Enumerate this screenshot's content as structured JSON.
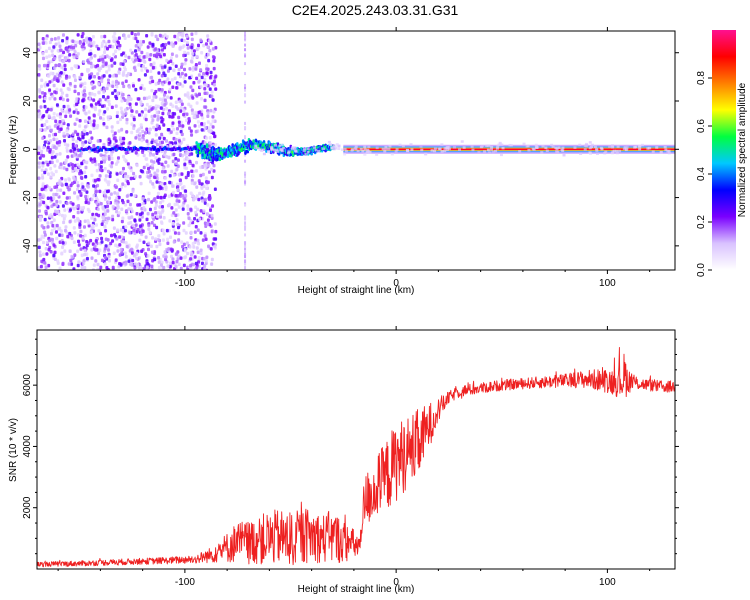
{
  "page": {
    "title": "C2E4.2025.243.03.31.G31"
  },
  "chart_data": [
    {
      "type": "heatmap",
      "name": "spectrogram",
      "xlabel": "Height of straight line (km)",
      "ylabel": "Frequency (Hz)",
      "xlim": [
        -170,
        132
      ],
      "ylim": [
        -50,
        49
      ],
      "xticks": [
        -100,
        0,
        100
      ],
      "yticks": [
        -40,
        -20,
        0,
        20,
        40
      ],
      "x_tick_labels": [
        "-100",
        "0",
        "100"
      ],
      "y_tick_labels": [
        "-40",
        "-20",
        "0",
        "20",
        "40"
      ],
      "features": {
        "noise_region_x": [
          -170,
          -90
        ],
        "vertical_artifact_x": -72,
        "carrier_frequency": 0,
        "strong_carrier_start_x": -25,
        "wobble_segment": [
          -95,
          -30
        ]
      },
      "colorbar": {
        "label": "Normalized spectral amplitude",
        "range": [
          0.0,
          1.0
        ],
        "ticks": [
          0.0,
          0.2,
          0.4,
          0.6,
          0.8
        ],
        "tick_labels": [
          "0.0",
          "0.2",
          "0.4",
          "0.6",
          "0.8"
        ],
        "colormap": [
          "#ffffff",
          "#d9c2ff",
          "#7a00ff",
          "#0000ff",
          "#00c8ff",
          "#00ff40",
          "#ffff00",
          "#ff7f00",
          "#ff0000",
          "#ff1090"
        ]
      }
    },
    {
      "type": "line",
      "name": "snr",
      "xlabel": "Height of straight line (km)",
      "ylabel": "SNR (10 * v/v)",
      "xlim": [
        -170,
        132
      ],
      "ylim": [
        0,
        7800
      ],
      "xticks": [
        -100,
        0,
        100
      ],
      "yticks": [
        2000,
        4000,
        6000
      ],
      "x_tick_labels": [
        "-100",
        "0",
        "100"
      ],
      "y_tick_labels": [
        "2000",
        "4000",
        "6000"
      ],
      "line_color": "#ee2020",
      "envelope": {
        "x": [
          -170,
          -150,
          -130,
          -110,
          -95,
          -88,
          -80,
          -75,
          -70,
          -65,
          -60,
          -55,
          -50,
          -45,
          -40,
          -35,
          -30,
          -25,
          -20,
          -17,
          -15,
          -10,
          -5,
          0,
          5,
          10,
          15,
          20,
          25,
          30,
          40,
          50,
          60,
          70,
          80,
          90,
          100,
          105,
          108,
          110,
          115,
          120,
          125,
          132
        ],
        "mean": [
          150,
          180,
          230,
          270,
          320,
          450,
          700,
          900,
          850,
          950,
          1000,
          1050,
          950,
          1050,
          1100,
          1000,
          1050,
          900,
          800,
          750,
          2200,
          2600,
          3000,
          3500,
          3800,
          4000,
          4600,
          5200,
          5600,
          5800,
          5900,
          6000,
          6050,
          6100,
          6150,
          6200,
          6150,
          6100,
          6300,
          6150,
          6050,
          6000,
          5950,
          5950
        ],
        "noise": [
          80,
          90,
          100,
          110,
          140,
          250,
          500,
          700,
          700,
          800,
          900,
          900,
          900,
          900,
          900,
          800,
          900,
          700,
          500,
          400,
          900,
          1000,
          1200,
          1300,
          1200,
          1200,
          800,
          400,
          200,
          200,
          180,
          180,
          180,
          200,
          220,
          300,
          400,
          500,
          800,
          400,
          200,
          200,
          200,
          200
        ]
      }
    }
  ]
}
